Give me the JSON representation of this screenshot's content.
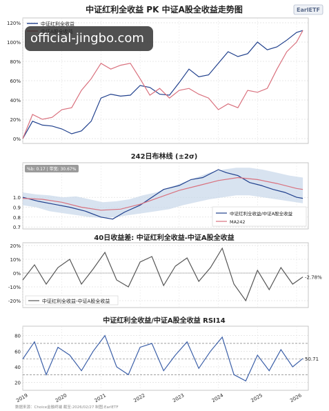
{
  "brand": "EarlETF",
  "overlay_text": "official-jingbo.com",
  "footer": "数据来源：Choice金融终端 截至:2026/02/27 制图:EarlETF",
  "colors": {
    "blue": "#1f3f8c",
    "red": "#d9707d",
    "grid": "#cfcfcf",
    "band": "#c7d7ea",
    "rsi_line": "#3b5fa8"
  },
  "chart_data": [
    {
      "type": "line",
      "title": "中证红利全收益 PK 中证A股全收益走势图",
      "ylim": [
        -0.05,
        1.25
      ],
      "yticks": [
        0,
        0.2,
        0.4,
        0.6,
        0.8,
        1.0,
        1.2
      ],
      "ytick_labels": [
        "0%",
        "20%",
        "40%",
        "60%",
        "80%",
        "100%",
        "120%"
      ],
      "grid": true,
      "legend_position": "top-left",
      "series": [
        {
          "name": "中证红利全收益",
          "color": "#1f3f8c",
          "x": [
            2019.0,
            2019.25,
            2019.5,
            2019.75,
            2020.0,
            2020.25,
            2020.5,
            2020.75,
            2021.0,
            2021.25,
            2021.5,
            2021.75,
            2022.0,
            2022.25,
            2022.5,
            2022.75,
            2023.0,
            2023.25,
            2023.5,
            2023.75,
            2024.0,
            2024.25,
            2024.5,
            2024.75,
            2025.0,
            2025.25,
            2025.5,
            2025.75,
            2026.0,
            2026.16
          ],
          "values": [
            0.0,
            0.18,
            0.14,
            0.13,
            0.1,
            0.05,
            0.08,
            0.18,
            0.42,
            0.46,
            0.44,
            0.45,
            0.55,
            0.53,
            0.46,
            0.45,
            0.58,
            0.72,
            0.64,
            0.66,
            0.78,
            0.9,
            0.85,
            0.88,
            1.0,
            0.92,
            0.95,
            1.02,
            1.1,
            1.12
          ]
        },
        {
          "name": "中证A股全收益",
          "color": "#d9707d",
          "x": [
            2019.0,
            2019.25,
            2019.5,
            2019.75,
            2020.0,
            2020.25,
            2020.5,
            2020.75,
            2021.0,
            2021.25,
            2021.5,
            2021.75,
            2022.0,
            2022.25,
            2022.5,
            2022.75,
            2023.0,
            2023.25,
            2023.5,
            2023.75,
            2024.0,
            2024.25,
            2024.5,
            2024.75,
            2025.0,
            2025.25,
            2025.5,
            2025.75,
            2026.0,
            2026.16
          ],
          "values": [
            0.0,
            0.25,
            0.2,
            0.22,
            0.3,
            0.32,
            0.5,
            0.62,
            0.78,
            0.72,
            0.76,
            0.78,
            0.62,
            0.45,
            0.52,
            0.42,
            0.5,
            0.52,
            0.46,
            0.42,
            0.3,
            0.36,
            0.32,
            0.5,
            0.48,
            0.52,
            0.72,
            0.9,
            1.0,
            1.12
          ]
        }
      ]
    },
    {
      "type": "line",
      "title": "242日布林线 (±2σ)",
      "ylim": [
        0.68,
        1.35
      ],
      "yticks": [
        0.7,
        0.8,
        0.9,
        1.0
      ],
      "ytick_labels": [
        "0.7",
        "0.8",
        "0.9",
        "1.0"
      ],
      "grid": true,
      "legend_position": "bottom-right",
      "info_text": "%b: 0.17 | 带宽: 30.67%",
      "band_upper": [
        1.05,
        1.03,
        1.02,
        1.0,
        1.01,
        0.98,
        0.95,
        0.96,
        0.98,
        1.02,
        1.05,
        1.1,
        1.15,
        1.2,
        1.25,
        1.28,
        1.3,
        1.3,
        1.28,
        1.25,
        1.22,
        1.2
      ],
      "band_lower": [
        0.92,
        0.9,
        0.86,
        0.84,
        0.82,
        0.8,
        0.79,
        0.8,
        0.82,
        0.84,
        0.86,
        0.88,
        0.92,
        0.95,
        0.98,
        1.0,
        1.02,
        1.02,
        1.0,
        0.98,
        0.96,
        0.94
      ],
      "series": [
        {
          "name": "中证红利全收益/中证A股全收益",
          "color": "#1f3f8c",
          "x": [
            2019.0,
            2019.4,
            2019.8,
            2020.2,
            2020.6,
            2021.0,
            2021.3,
            2021.6,
            2022.0,
            2022.3,
            2022.6,
            2023.0,
            2023.3,
            2023.6,
            2024.0,
            2024.2,
            2024.5,
            2024.8,
            2025.1,
            2025.4,
            2025.7,
            2026.0,
            2026.16
          ],
          "values": [
            1.0,
            0.96,
            0.93,
            0.9,
            0.86,
            0.8,
            0.78,
            0.85,
            0.92,
            1.0,
            1.08,
            1.12,
            1.18,
            1.2,
            1.28,
            1.25,
            1.22,
            1.15,
            1.12,
            1.08,
            1.05,
            1.0,
            0.99
          ]
        },
        {
          "name": "MA242",
          "color": "#d9707d",
          "x": [
            2019.0,
            2019.5,
            2020.0,
            2020.5,
            2021.0,
            2021.5,
            2022.0,
            2022.5,
            2023.0,
            2023.5,
            2024.0,
            2024.5,
            2025.0,
            2025.5,
            2026.0,
            2026.16
          ],
          "values": [
            0.99,
            0.98,
            0.95,
            0.9,
            0.87,
            0.88,
            0.93,
            1.0,
            1.07,
            1.12,
            1.17,
            1.2,
            1.18,
            1.14,
            1.09,
            1.08
          ]
        }
      ]
    },
    {
      "type": "line",
      "title": "40日收益差: 中证红利全收益-中证A股全收益",
      "ylim": [
        -0.25,
        0.22
      ],
      "yticks": [
        -0.2,
        -0.1,
        0,
        0.1,
        0.2
      ],
      "ytick_labels": [
        "-20%",
        "-10%",
        "0%",
        "10%",
        "20%"
      ],
      "grid": true,
      "legend_position": "bottom-left",
      "last_value_label": "-2.78%",
      "series": [
        {
          "name": "中证红利全收益-中证A股全收益",
          "color": "#555555",
          "x": [
            2019.0,
            2019.3,
            2019.6,
            2019.9,
            2020.2,
            2020.5,
            2020.8,
            2021.1,
            2021.4,
            2021.7,
            2022.0,
            2022.3,
            2022.6,
            2022.9,
            2023.2,
            2023.5,
            2023.8,
            2024.1,
            2024.4,
            2024.7,
            2025.0,
            2025.3,
            2025.6,
            2025.9,
            2026.16
          ],
          "values": [
            -0.05,
            0.06,
            -0.08,
            0.04,
            0.1,
            -0.08,
            0.03,
            0.15,
            -0.05,
            -0.1,
            0.08,
            0.12,
            -0.09,
            0.05,
            0.11,
            -0.06,
            0.04,
            0.18,
            -0.08,
            -0.2,
            0.02,
            -0.12,
            0.04,
            -0.08,
            -0.0278
          ]
        }
      ]
    },
    {
      "type": "line",
      "title": "中证红利全收益/中证A股全收益 RSI14",
      "ylim": [
        10,
        92
      ],
      "yticks": [
        20,
        40,
        60,
        80
      ],
      "ytick_labels": [
        "20",
        "40",
        "60",
        "80"
      ],
      "ref_lines": [
        30,
        50,
        70
      ],
      "grid": true,
      "last_value_label": "50.71",
      "xticks": [
        2019,
        2020,
        2021,
        2022,
        2023,
        2024,
        2025,
        2026
      ],
      "xtick_labels": [
        "2019",
        "2020",
        "2021",
        "2022",
        "2023",
        "2024",
        "2025",
        "2026"
      ],
      "series": [
        {
          "name": "RSI14",
          "color": "#3b5fa8",
          "x": [
            2019.0,
            2019.3,
            2019.6,
            2019.9,
            2020.2,
            2020.5,
            2020.8,
            2021.1,
            2021.4,
            2021.7,
            2022.0,
            2022.3,
            2022.6,
            2022.9,
            2023.2,
            2023.5,
            2023.8,
            2024.1,
            2024.4,
            2024.7,
            2025.0,
            2025.3,
            2025.6,
            2025.9,
            2026.16
          ],
          "values": [
            50,
            72,
            30,
            65,
            55,
            35,
            60,
            80,
            40,
            30,
            65,
            70,
            35,
            55,
            72,
            38,
            60,
            78,
            30,
            22,
            55,
            35,
            62,
            40,
            50.71
          ]
        }
      ]
    }
  ]
}
